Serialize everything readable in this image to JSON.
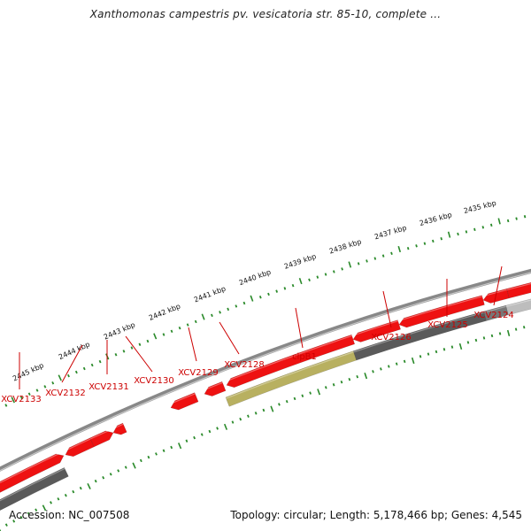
{
  "title": "Xanthomonas campestris pv. vesicatoria str. 85-10, complete ...",
  "footer": {
    "accession": "Accession: NC_007508",
    "summary": "Topology: circular; Length: 5,178,466 bp; Genes: 4,545"
  },
  "colors": {
    "gene": "#ee1111",
    "gene_highlight": "#b8b060",
    "gene_reverse": "#5a5a5a",
    "backbone": "#888888",
    "tick": "#2a8a2a",
    "label": "#cc0000"
  },
  "scale_labels": [
    "2445 kbp",
    "2444 kbp",
    "2443 kbp",
    "2442 kbp",
    "2441 kbp",
    "2440 kbp",
    "2439 kbp",
    "2438 kbp",
    "2437 kbp",
    "2436 kbp",
    "2435 kbp"
  ],
  "gene_labels": [
    "XCV2133",
    "XCV2132",
    "XCV2131",
    "XCV2130",
    "XCV2129",
    "XCV2128",
    "clpB1",
    "XCV2126",
    "XCV2125",
    "XCV2124"
  ]
}
